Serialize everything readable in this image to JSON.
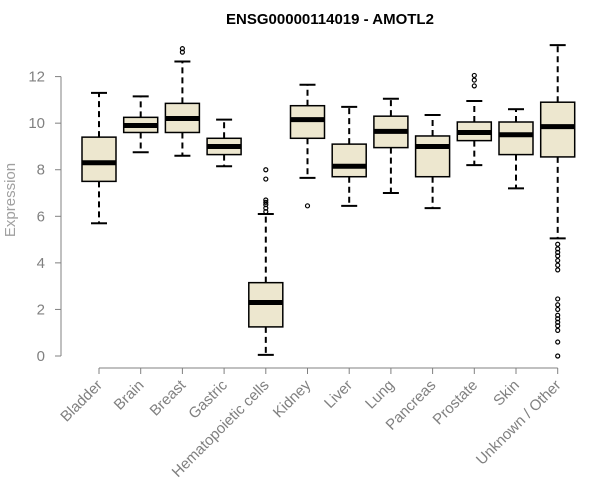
{
  "chart_data": {
    "type": "boxplot",
    "title": "ENSG00000114019 - AMOTL2",
    "xlabel": "",
    "ylabel": "Expression",
    "ylim": [
      0,
      13.4
    ],
    "yticks": [
      0,
      2,
      4,
      6,
      8,
      10,
      12
    ],
    "ytick_labels": [
      "0",
      "2",
      "4",
      "6",
      "8",
      "10",
      "12"
    ],
    "grid": false,
    "legend": "none",
    "colors": {
      "box_fill": "#ede7cf",
      "box_stroke": "#000000",
      "axis": "#808080",
      "title": "#000000"
    },
    "categories": [
      "Bladder",
      "Brain",
      "Breast",
      "Gastric",
      "Hematopoietic cells",
      "Kidney",
      "Liver",
      "Lung",
      "Pancreas",
      "Prostate",
      "Skin",
      "Unknown / Other"
    ],
    "boxes": [
      {
        "name": "Bladder",
        "whisker_low": 5.7,
        "q1": 7.5,
        "median": 8.3,
        "q3": 9.4,
        "whisker_high": 11.3,
        "outliers": []
      },
      {
        "name": "Brain",
        "whisker_low": 8.75,
        "q1": 9.6,
        "median": 9.9,
        "q3": 10.25,
        "whisker_high": 11.15,
        "outliers": []
      },
      {
        "name": "Breast",
        "whisker_low": 8.6,
        "q1": 9.6,
        "median": 10.2,
        "q3": 10.85,
        "whisker_high": 12.65,
        "outliers": [
          13.05,
          13.2
        ]
      },
      {
        "name": "Gastric",
        "whisker_low": 8.15,
        "q1": 8.65,
        "median": 9.0,
        "q3": 9.35,
        "whisker_high": 10.15,
        "outliers": []
      },
      {
        "name": "Hematopoietic cells",
        "whisker_low": 0.05,
        "q1": 1.25,
        "median": 2.3,
        "q3": 3.15,
        "whisker_high": 6.1,
        "outliers": [
          6.2,
          6.35,
          6.5,
          6.6,
          6.7,
          7.6,
          8.0
        ]
      },
      {
        "name": "Kidney",
        "whisker_low": 7.65,
        "q1": 9.35,
        "median": 10.15,
        "q3": 10.75,
        "whisker_high": 11.65,
        "outliers": [
          6.45
        ]
      },
      {
        "name": "Liver",
        "whisker_low": 6.45,
        "q1": 7.7,
        "median": 8.15,
        "q3": 9.1,
        "whisker_high": 10.7,
        "outliers": []
      },
      {
        "name": "Lung",
        "whisker_low": 7.0,
        "q1": 8.95,
        "median": 9.65,
        "q3": 10.3,
        "whisker_high": 11.05,
        "outliers": []
      },
      {
        "name": "Pancreas",
        "whisker_low": 6.35,
        "q1": 7.7,
        "median": 9.0,
        "q3": 9.45,
        "whisker_high": 10.35,
        "outliers": []
      },
      {
        "name": "Prostate",
        "whisker_low": 8.2,
        "q1": 9.25,
        "median": 9.6,
        "q3": 10.05,
        "whisker_high": 10.95,
        "outliers": [
          11.6,
          11.85,
          12.05
        ]
      },
      {
        "name": "Skin",
        "whisker_low": 7.2,
        "q1": 8.65,
        "median": 9.5,
        "q3": 10.05,
        "whisker_high": 10.6,
        "outliers": []
      },
      {
        "name": "Unknown / Other",
        "whisker_low": 5.05,
        "q1": 8.55,
        "median": 9.85,
        "q3": 10.9,
        "whisker_high": 13.35,
        "outliers": [
          0.0,
          0.6,
          1.1,
          1.3,
          1.45,
          1.6,
          1.75,
          2.0,
          2.2,
          2.45,
          3.7,
          3.9,
          4.1,
          4.3,
          4.45,
          4.6,
          4.8
        ]
      }
    ]
  }
}
